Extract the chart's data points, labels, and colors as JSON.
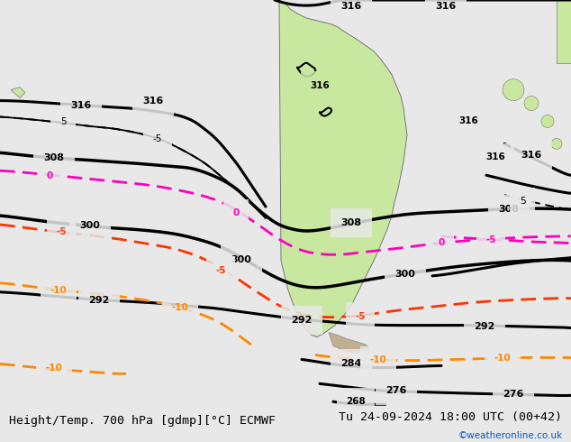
{
  "title_left": "Height/Temp. 700 hPa [gdmp][°C] ECMWF",
  "title_right": "Tu 24-09-2024 18:00 UTC (00+42)",
  "credit": "©weatheronline.co.uk",
  "bg_ocean": "#e8e8e8",
  "bg_land": "#c8e8a0",
  "bg_mountain": "#c0b090",
  "border_color": "#666666",
  "title_fontsize": 9.5,
  "credit_color": "#0055cc",
  "fig_width": 6.34,
  "fig_height": 4.9,
  "dpi": 100
}
